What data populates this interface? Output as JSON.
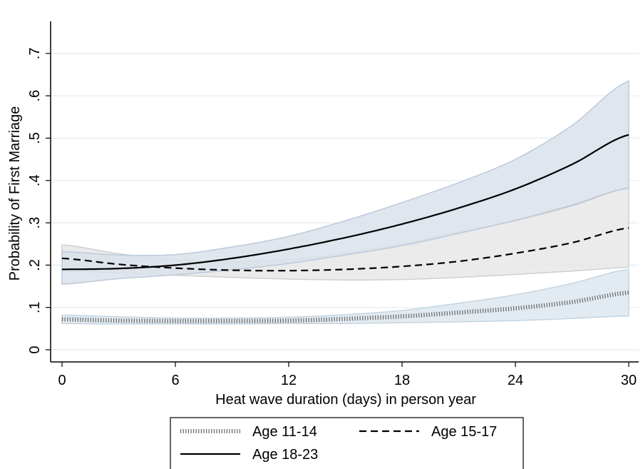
{
  "chart_data": {
    "type": "line",
    "title": "",
    "xlabel": "Heat wave duration (days) in person year",
    "ylabel": "Probability of First Marriage",
    "xlim": [
      0,
      30
    ],
    "ylim": [
      0,
      0.75
    ],
    "x_ticks": [
      0,
      6,
      12,
      18,
      24,
      30
    ],
    "x_tick_labels": [
      "0",
      "6",
      "12",
      "18",
      "24",
      "30"
    ],
    "y_ticks": [
      0,
      0.1,
      0.2,
      0.3,
      0.4,
      0.5,
      0.6,
      0.7
    ],
    "y_tick_labels": [
      "0",
      ".1",
      ".2",
      ".3",
      ".4",
      ".5",
      ".6",
      ".7"
    ],
    "grid": true,
    "legend_position": "bottom",
    "series": [
      {
        "name": "Age 11-14",
        "style": "dotted",
        "x": [
          0,
          3,
          6,
          9,
          12,
          15,
          18,
          21,
          24,
          27,
          30
        ],
        "y": [
          0.072,
          0.069,
          0.068,
          0.068,
          0.069,
          0.073,
          0.079,
          0.088,
          0.098,
          0.113,
          0.135
        ],
        "lower": [
          0.062,
          0.061,
          0.061,
          0.061,
          0.062,
          0.062,
          0.064,
          0.066,
          0.069,
          0.074,
          0.08
        ],
        "upper": [
          0.082,
          0.078,
          0.075,
          0.075,
          0.077,
          0.083,
          0.093,
          0.11,
          0.13,
          0.157,
          0.19
        ]
      },
      {
        "name": "Age 15-17",
        "style": "dashed",
        "x": [
          0,
          3,
          6,
          9,
          12,
          15,
          18,
          21,
          24,
          27,
          30
        ],
        "y": [
          0.216,
          0.202,
          0.193,
          0.188,
          0.187,
          0.19,
          0.197,
          0.209,
          0.228,
          0.253,
          0.288
        ],
        "lower": [
          0.185,
          0.182,
          0.176,
          0.171,
          0.167,
          0.165,
          0.166,
          0.171,
          0.178,
          0.186,
          0.195
        ],
        "upper": [
          0.248,
          0.227,
          0.213,
          0.209,
          0.213,
          0.228,
          0.25,
          0.278,
          0.305,
          0.34,
          0.382
        ]
      },
      {
        "name": "Age 18-23",
        "style": "solid",
        "x": [
          0,
          3,
          6,
          9,
          12,
          15,
          18,
          21,
          24,
          27,
          30
        ],
        "y": [
          0.19,
          0.192,
          0.2,
          0.216,
          0.238,
          0.265,
          0.297,
          0.335,
          0.38,
          0.438,
          0.508
        ],
        "lower": [
          0.155,
          0.168,
          0.177,
          0.189,
          0.204,
          0.224,
          0.246,
          0.275,
          0.306,
          0.342,
          0.383
        ],
        "upper": [
          0.232,
          0.224,
          0.225,
          0.243,
          0.268,
          0.305,
          0.348,
          0.395,
          0.45,
          0.53,
          0.635
        ]
      }
    ],
    "band_colors": {
      "age_11_14": "#dde7ee",
      "age_15_17": "#e7e7e7",
      "age_18_23": "#dae2eb"
    },
    "band_stroke_colors": {
      "age_11_14": "#c5d5e2",
      "age_15_17": "#d0d0d0",
      "age_18_23": "#bccadb"
    },
    "grid_color": "#e4ebf1"
  }
}
